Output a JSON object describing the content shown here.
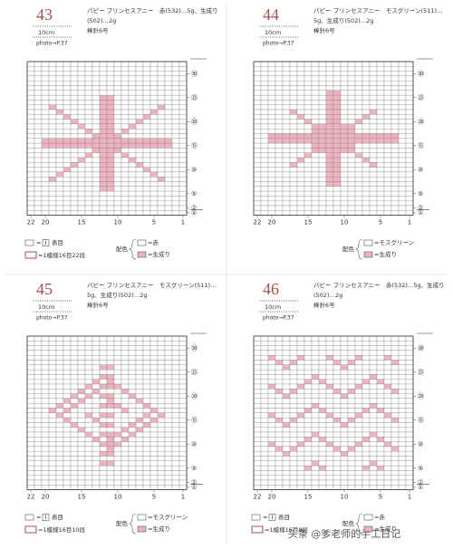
{
  "panels": [
    {
      "number": "43",
      "gauge": "10cm",
      "photo": "photo→P.37",
      "yarn": [
        "パピー プリンセスアニー　赤(532)…5g、生成り",
        "(502)…2g",
        "棒針6号"
      ],
      "row_labels": [
        {
          "value": 30,
          "label": "㉚"
        },
        {
          "value": 25,
          "label": "㉕"
        },
        {
          "value": 20,
          "label": "⑳"
        },
        {
          "value": 15,
          "label": "⑮"
        },
        {
          "value": 10,
          "label": "⑩"
        },
        {
          "value": 5,
          "label": "⑤"
        },
        {
          "value": 2,
          "label": "②"
        },
        {
          "value": 1,
          "label": "①"
        }
      ],
      "col_labels": [
        22,
        20,
        15,
        10,
        5,
        1
      ],
      "legend": {
        "equals": "=",
        "symbol": "I",
        "knit": "表目",
        "repeat": "=1模様16目22段",
        "color_title": "配色",
        "colors": [
          "=赤",
          "=生成り"
        ]
      }
    },
    {
      "number": "44",
      "gauge": "10cm",
      "photo": "photo→P.37",
      "yarn": [
        "パピー プリンセスアニー　モスグリーン(511)…",
        "5g、生成り(502)…2g",
        "棒針6号"
      ],
      "row_labels": [
        {
          "value": 30,
          "label": "㉚"
        },
        {
          "value": 25,
          "label": "㉕"
        },
        {
          "value": 20,
          "label": "⑳"
        },
        {
          "value": 15,
          "label": "⑮"
        },
        {
          "value": 10,
          "label": "⑩"
        },
        {
          "value": 5,
          "label": "⑤"
        },
        {
          "value": 2,
          "label": "②"
        },
        {
          "value": 1,
          "label": "①"
        }
      ],
      "col_labels": [
        22,
        20,
        15,
        10,
        5,
        1
      ],
      "legend": {
        "color_title": "配色",
        "colors": [
          "=モスグリーン",
          "=生成り"
        ]
      }
    },
    {
      "number": "45",
      "gauge": "10cm",
      "photo": "photo→P.37",
      "yarn": [
        "パピー プリンセスアニー　モスグリーン(511)…",
        "5g、生成り(502)…2g",
        "棒針6号"
      ],
      "row_labels": [
        {
          "value": 30,
          "label": "㉚"
        },
        {
          "value": 25,
          "label": "㉕"
        },
        {
          "value": 20,
          "label": "⑳"
        },
        {
          "value": 15,
          "label": "⑮"
        },
        {
          "value": 10,
          "label": "⑩"
        },
        {
          "value": 5,
          "label": "⑤"
        },
        {
          "value": 2,
          "label": "②"
        },
        {
          "value": 1,
          "label": "①"
        }
      ],
      "col_labels": [
        22,
        20,
        15,
        10,
        5,
        1
      ],
      "legend": {
        "equals": "=",
        "symbol": "I",
        "knit": "表目",
        "repeat": "=1模様16目10段",
        "color_title": "配色",
        "colors": [
          "=モスグリーン",
          "=生成り"
        ]
      }
    },
    {
      "number": "46",
      "gauge": "10cm",
      "photo": "photo→P.37",
      "yarn": [
        "パピー プリンセスアニー　赤(532)…5g、生成り",
        "(502)…2g",
        "棒針6号"
      ],
      "row_labels": [
        {
          "value": 30,
          "label": "㉚"
        },
        {
          "value": 25,
          "label": "㉕"
        },
        {
          "value": 20,
          "label": "⑳"
        },
        {
          "value": 15,
          "label": "⑮"
        },
        {
          "value": 10,
          "label": "⑩"
        },
        {
          "value": 5,
          "label": "⑤"
        },
        {
          "value": 2,
          "label": "②"
        },
        {
          "value": 1,
          "label": "①"
        }
      ],
      "col_labels": [
        22,
        20,
        15,
        10,
        5,
        1
      ],
      "legend": {
        "equals": "=",
        "symbol": "I",
        "knit": "表目",
        "repeat": "=1模様16目8段",
        "color_title": "配色",
        "colors": [
          "=赤",
          "=生成り"
        ]
      }
    }
  ],
  "watermark": "头条 @爹老师的手工日记"
}
